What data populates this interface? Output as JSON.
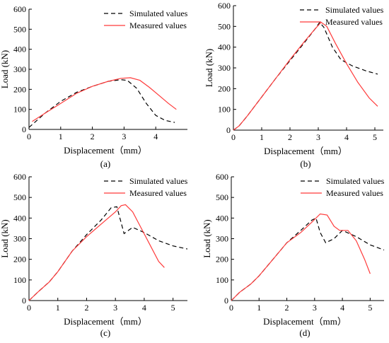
{
  "chart_data": [
    {
      "type": "line",
      "panel_label": "(a)",
      "xlabel": "Displacement（mm）",
      "ylabel": "Load (kN)",
      "xlim": [
        0,
        5
      ],
      "ylim": [
        0,
        600
      ],
      "xticks": [
        0,
        1,
        2,
        3,
        4
      ],
      "yticks": [
        0,
        100,
        200,
        300,
        400,
        500,
        600
      ],
      "legend": "top-right",
      "series": [
        {
          "name": "Simulated values",
          "color": "#000000",
          "dash": "dashed",
          "x": [
            0,
            0.5,
            1.0,
            1.5,
            2.0,
            2.5,
            2.9,
            3.1,
            3.4,
            3.7,
            4.0,
            4.3,
            4.6
          ],
          "y": [
            10,
            80,
            140,
            185,
            215,
            240,
            248,
            245,
            205,
            130,
            70,
            45,
            35
          ]
        },
        {
          "name": "Measured values",
          "color": "#ff3b3b",
          "dash": "solid",
          "x": [
            0.1,
            0.5,
            1.0,
            1.5,
            2.0,
            2.5,
            2.9,
            3.2,
            3.5,
            3.8,
            4.1,
            4.4,
            4.65
          ],
          "y": [
            40,
            80,
            130,
            180,
            215,
            240,
            255,
            258,
            245,
            210,
            170,
            130,
            100
          ]
        }
      ]
    },
    {
      "type": "line",
      "panel_label": "(b)",
      "xlabel": "Displacement（mm）",
      "ylabel": "Load (kN)",
      "xlim": [
        0,
        5.3
      ],
      "ylim": [
        0,
        600
      ],
      "xticks": [
        0,
        1,
        2,
        3,
        4,
        5
      ],
      "yticks": [
        0,
        100,
        200,
        300,
        400,
        500,
        600
      ],
      "legend": "top-right",
      "series": [
        {
          "name": "Simulated values",
          "color": "#000000",
          "dash": "dashed",
          "x": [
            0,
            0.2,
            0.5,
            1.0,
            1.5,
            2.0,
            2.5,
            2.9,
            3.05,
            3.2,
            3.5,
            3.8,
            4.2,
            4.7,
            5.1
          ],
          "y": [
            0,
            20,
            70,
            160,
            250,
            335,
            420,
            490,
            520,
            495,
            400,
            340,
            310,
            285,
            270
          ]
        },
        {
          "name": "Measured values",
          "color": "#ff3b3b",
          "dash": "solid",
          "x": [
            0,
            0.2,
            0.5,
            1.0,
            1.5,
            2.0,
            2.5,
            2.9,
            3.1,
            3.3,
            3.6,
            4.0,
            4.4,
            4.8,
            5.1
          ],
          "y": [
            0,
            20,
            70,
            160,
            250,
            340,
            425,
            490,
            520,
            500,
            420,
            320,
            230,
            155,
            115
          ]
        }
      ]
    },
    {
      "type": "line",
      "panel_label": "(c)",
      "xlabel": "Displacement（mm）",
      "ylabel": "Load (kN)",
      "xlim": [
        0,
        5.5
      ],
      "ylim": [
        0,
        600
      ],
      "xticks": [
        0,
        1,
        2,
        3,
        4,
        5
      ],
      "yticks": [
        0,
        100,
        200,
        300,
        400,
        500,
        600
      ],
      "legend": "top-right",
      "series": [
        {
          "name": "Simulated values",
          "color": "#000000",
          "dash": "dashed",
          "x": [
            0,
            0.3,
            0.7,
            1.0,
            1.5,
            2.0,
            2.5,
            2.85,
            3.05,
            3.3,
            3.6,
            4.0,
            4.5,
            5.0,
            5.5
          ],
          "y": [
            0,
            40,
            90,
            140,
            240,
            320,
            390,
            450,
            455,
            325,
            355,
            330,
            290,
            265,
            250
          ]
        },
        {
          "name": "Measured values",
          "color": "#ff3b3b",
          "dash": "solid",
          "x": [
            0,
            0.3,
            0.7,
            1.0,
            1.5,
            2.0,
            2.5,
            3.0,
            3.2,
            3.35,
            3.6,
            3.9,
            4.2,
            4.5,
            4.7
          ],
          "y": [
            0,
            40,
            90,
            140,
            240,
            310,
            370,
            430,
            460,
            465,
            430,
            350,
            270,
            190,
            160
          ]
        }
      ]
    },
    {
      "type": "line",
      "panel_label": "(d)",
      "xlabel": "Displacement（mm）",
      "ylabel": "Load (kN)",
      "xlim": [
        0,
        5.5
      ],
      "ylim": [
        0,
        600
      ],
      "xticks": [
        0,
        1,
        2,
        3,
        4,
        5
      ],
      "yticks": [
        0,
        100,
        200,
        300,
        400,
        500,
        600
      ],
      "legend": "top-right",
      "series": [
        {
          "name": "Simulated values",
          "color": "#000000",
          "dash": "dashed",
          "x": [
            0,
            0.3,
            0.7,
            1.0,
            1.5,
            2.0,
            2.5,
            2.9,
            3.05,
            3.2,
            3.4,
            3.7,
            4.0,
            4.5,
            5.0,
            5.5
          ],
          "y": [
            0,
            40,
            80,
            120,
            200,
            280,
            340,
            390,
            400,
            330,
            280,
            300,
            340,
            310,
            270,
            245
          ]
        },
        {
          "name": "Measured values",
          "color": "#ff3b3b",
          "dash": "solid",
          "x": [
            0,
            0.3,
            0.7,
            1.0,
            1.5,
            2.0,
            2.5,
            2.9,
            3.2,
            3.45,
            3.7,
            3.9,
            4.2,
            4.5,
            4.8,
            5.0
          ],
          "y": [
            0,
            40,
            80,
            120,
            200,
            280,
            330,
            380,
            420,
            415,
            360,
            340,
            340,
            290,
            200,
            130
          ]
        }
      ]
    }
  ]
}
